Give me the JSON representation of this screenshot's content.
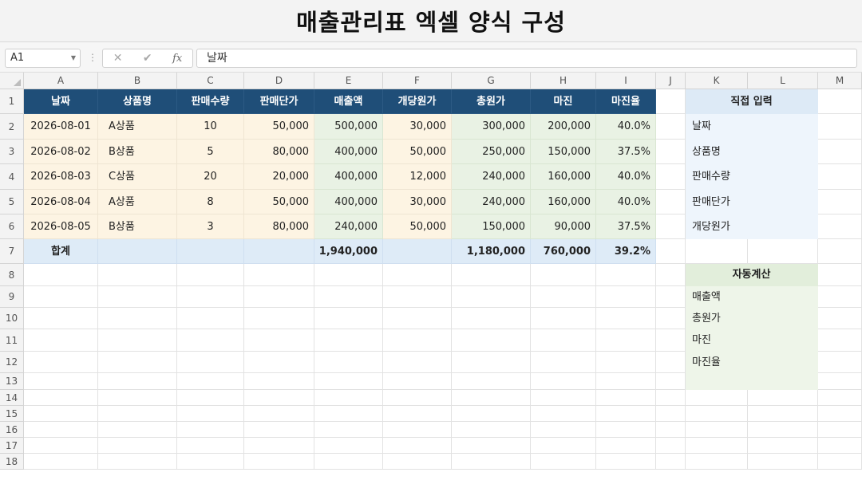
{
  "title": "매출관리표 엑셀 양식 구성",
  "formula_bar": {
    "name_box": "A1",
    "formula": "날짜"
  },
  "columns": [
    "A",
    "B",
    "C",
    "D",
    "E",
    "F",
    "G",
    "H",
    "I",
    "J",
    "K",
    "L",
    "M"
  ],
  "rows": [
    "1",
    "2",
    "3",
    "4",
    "5",
    "6",
    "7",
    "8",
    "9",
    "10",
    "11",
    "12",
    "13",
    "14",
    "15",
    "16",
    "17",
    "18"
  ],
  "table": {
    "headers": [
      "날짜",
      "상품명",
      "판매수량",
      "판매단가",
      "매출액",
      "개당원가",
      "총원가",
      "마진",
      "마진율"
    ],
    "data": [
      [
        "2026-08-01",
        "A상품",
        "10",
        "50,000",
        "500,000",
        "30,000",
        "300,000",
        "200,000",
        "40.0%"
      ],
      [
        "2026-08-02",
        "B상품",
        "5",
        "80,000",
        "400,000",
        "50,000",
        "250,000",
        "150,000",
        "37.5%"
      ],
      [
        "2026-08-03",
        "C상품",
        "20",
        "20,000",
        "400,000",
        "12,000",
        "240,000",
        "160,000",
        "40.0%"
      ],
      [
        "2026-08-04",
        "A상품",
        "8",
        "50,000",
        "400,000",
        "30,000",
        "240,000",
        "160,000",
        "40.0%"
      ],
      [
        "2026-08-05",
        "B상품",
        "3",
        "80,000",
        "240,000",
        "50,000",
        "150,000",
        "90,000",
        "37.5%"
      ]
    ],
    "total": {
      "label": "합계",
      "sales": "1,940,000",
      "total_cost": "1,180,000",
      "margin": "760,000",
      "margin_rate": "39.2%"
    }
  },
  "direct_input": {
    "title": "직접 입력",
    "items": [
      "날짜",
      "상품명",
      "판매수량",
      "판매단가",
      "개당원가"
    ]
  },
  "auto_calc": {
    "title": "자동계산",
    "items": [
      "매출액",
      "총원가",
      "마진",
      "마진율"
    ]
  },
  "colors": {
    "header": "#1f4e78",
    "input_cells": "#fdf4e3",
    "calc_cells": "#e9f2e4",
    "total_row": "#deebf7"
  }
}
